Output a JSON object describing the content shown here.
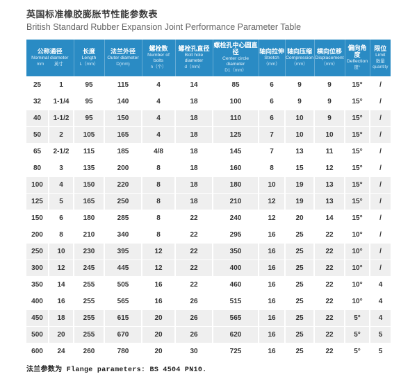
{
  "page": {
    "title_cn": "英国标准橡胶膨胀节性能参数表",
    "title_en": "British Standard Rubber Expansion Joint Performance Parameter Table",
    "footer_note": "法兰参数为 Flange parameters: BS 4504 PN10."
  },
  "colors": {
    "header_bg": "#2a8bc4",
    "stripe_bg": "#efefef",
    "header_text": "#ffffff",
    "body_text": "#333333"
  },
  "table": {
    "columns": [
      {
        "cn": "公称通径",
        "en": "Nominal diameter",
        "units": [
          "mm",
          "英寸"
        ],
        "span": 2
      },
      {
        "cn": "长度",
        "en": "Length",
        "units": [
          "L（mm）"
        ],
        "span": 1
      },
      {
        "cn": "法兰外径",
        "en": "Outer diameter",
        "units": [
          "D(mm)"
        ],
        "span": 1
      },
      {
        "cn": "螺栓数",
        "en": "Number of bolts",
        "units": [
          "n（个）"
        ],
        "span": 1
      },
      {
        "cn": "螺栓孔直径",
        "en": "Bolt hole diameter",
        "units": [
          "d（mm）"
        ],
        "span": 1
      },
      {
        "cn": "螺栓孔中心圆直径",
        "en": "Center circle diameter",
        "units": [
          "D1（mm）"
        ],
        "span": 1
      },
      {
        "cn": "轴向拉伸",
        "en": "Stretch",
        "units": [
          "（mm）"
        ],
        "span": 1
      },
      {
        "cn": "轴向压缩",
        "en": "Compression",
        "units": [
          "（mm）"
        ],
        "span": 1
      },
      {
        "cn": "横向位移",
        "en": "Displacement",
        "units": [
          "（mm）"
        ],
        "span": 1
      },
      {
        "cn": "偏向角度",
        "en": "Deflection",
        "units": [
          "度°"
        ],
        "span": 1
      },
      {
        "cn": "限位",
        "en": "Limit",
        "units": [
          "数量 quantity"
        ],
        "span": 1
      }
    ],
    "rows": [
      [
        "25",
        "1",
        "95",
        "115",
        "4",
        "14",
        "85",
        "6",
        "9",
        "9",
        "15°",
        "/"
      ],
      [
        "32",
        "1-1/4",
        "95",
        "140",
        "4",
        "18",
        "100",
        "6",
        "9",
        "9",
        "15°",
        "/"
      ],
      [
        "40",
        "1-1/2",
        "95",
        "150",
        "4",
        "18",
        "110",
        "6",
        "10",
        "9",
        "15°",
        "/"
      ],
      [
        "50",
        "2",
        "105",
        "165",
        "4",
        "18",
        "125",
        "7",
        "10",
        "10",
        "15°",
        "/"
      ],
      [
        "65",
        "2-1/2",
        "115",
        "185",
        "4/8",
        "18",
        "145",
        "7",
        "13",
        "11",
        "15°",
        "/"
      ],
      [
        "80",
        "3",
        "135",
        "200",
        "8",
        "18",
        "160",
        "8",
        "15",
        "12",
        "15°",
        "/"
      ],
      [
        "100",
        "4",
        "150",
        "220",
        "8",
        "18",
        "180",
        "10",
        "19",
        "13",
        "15°",
        "/"
      ],
      [
        "125",
        "5",
        "165",
        "250",
        "8",
        "18",
        "210",
        "12",
        "19",
        "13",
        "15°",
        "/"
      ],
      [
        "150",
        "6",
        "180",
        "285",
        "8",
        "22",
        "240",
        "12",
        "20",
        "14",
        "15°",
        "/"
      ],
      [
        "200",
        "8",
        "210",
        "340",
        "8",
        "22",
        "295",
        "16",
        "25",
        "22",
        "10°",
        "/"
      ],
      [
        "250",
        "10",
        "230",
        "395",
        "12",
        "22",
        "350",
        "16",
        "25",
        "22",
        "10°",
        "/"
      ],
      [
        "300",
        "12",
        "245",
        "445",
        "12",
        "22",
        "400",
        "16",
        "25",
        "22",
        "10°",
        "/"
      ],
      [
        "350",
        "14",
        "255",
        "505",
        "16",
        "22",
        "460",
        "16",
        "25",
        "22",
        "10°",
        "4"
      ],
      [
        "400",
        "16",
        "255",
        "565",
        "16",
        "26",
        "515",
        "16",
        "25",
        "22",
        "10°",
        "4"
      ],
      [
        "450",
        "18",
        "255",
        "615",
        "20",
        "26",
        "565",
        "16",
        "25",
        "22",
        "5°",
        "4"
      ],
      [
        "500",
        "20",
        "255",
        "670",
        "20",
        "26",
        "620",
        "16",
        "25",
        "22",
        "5°",
        "5"
      ],
      [
        "600",
        "24",
        "260",
        "780",
        "20",
        "30",
        "725",
        "16",
        "25",
        "22",
        "5°",
        "5"
      ]
    ]
  }
}
